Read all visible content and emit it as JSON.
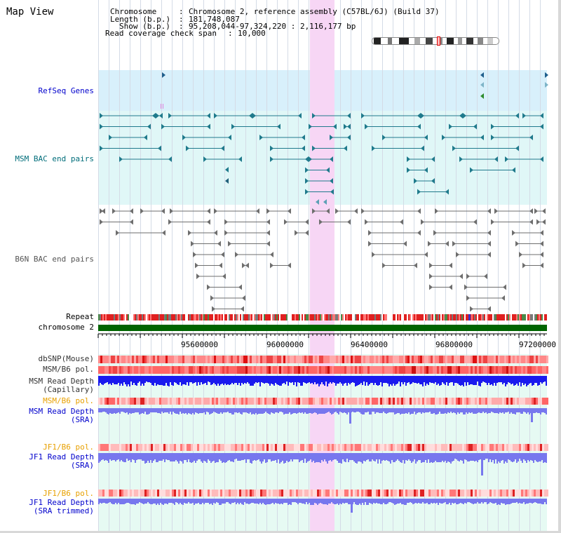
{
  "title": "Map View",
  "info": {
    "chromosome_key": "Chromosome",
    "chromosome_val": "Chromosome 2, reference assembly (C57BL/6J) (Build 37)",
    "length_key": "Length (b.p.)",
    "length_val": "181,748,087",
    "show_key": "Show (b.p.)",
    "show_val": "95,208,044-97,324,220 : 2,116,177 bp",
    "read_key": "Read coverage check span",
    "read_val": "10,000"
  },
  "tracks": {
    "refseq": "RefSeq Genes",
    "msm_bac": "MSM BAC end pairs",
    "b6n_bac": "B6N BAC end pairs",
    "repeat": "Repeat",
    "chromosome": "chromosome 2",
    "dbsnp": "dbSNP(Mouse)",
    "msm_b6_pol": "MSM/B6 pol.",
    "msm_depth_cap_1": "MSM Read Depth",
    "msm_depth_cap_2": "(Capillary)",
    "msm_b6_pol2": "MSM/B6 pol.",
    "msm_depth_sra_1": "MSM Read Depth",
    "msm_depth_sra_2": "(SRA)",
    "jf1_b6_pol": "JF1/B6 pol.",
    "jf1_depth_sra_1": "JF1 Read Depth",
    "jf1_depth_sra_2": "(SRA)",
    "jf1_b6_pol2": "JF1/B6 pol.",
    "jf1_depth_trim_1": "JF1 Read Depth",
    "jf1_depth_trim_2": "(SRA trimmed)"
  },
  "axis": {
    "ticks": [
      "95600000",
      "96000000",
      "96400000",
      "96800000",
      "97200000"
    ]
  },
  "colors": {
    "refseq_bg": "#d8f0fb",
    "bac_bg": "#e0f7f7",
    "lower_bg": "#e8fbf5",
    "highlight": "#f7d6f5",
    "chromosome": "#006400",
    "depth_blue": "#1a1aee",
    "depth_violet": "#7777ee",
    "teal_feature": "#1f7a8c",
    "grey_feature": "#6e6e6e"
  }
}
